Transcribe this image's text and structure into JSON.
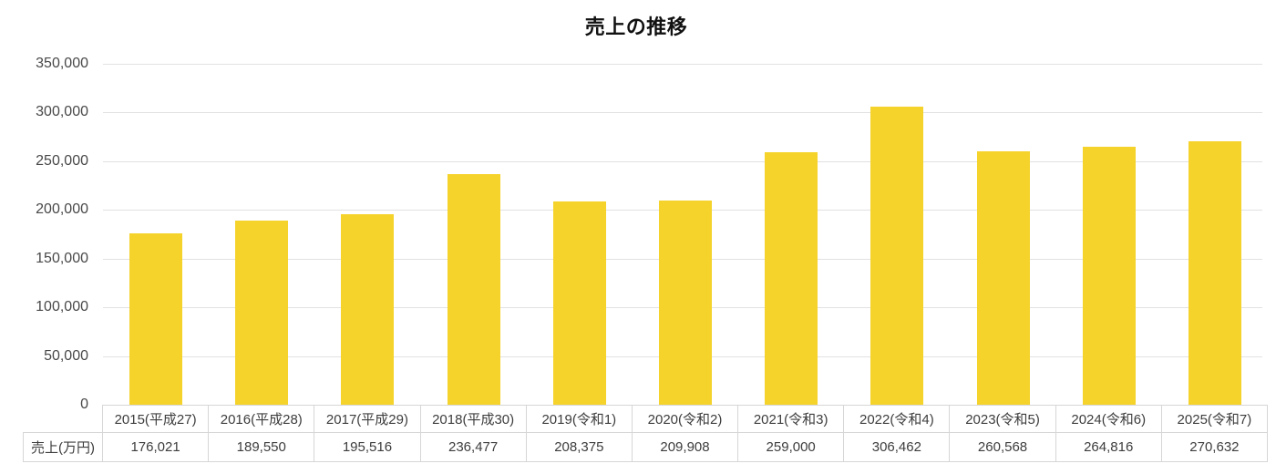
{
  "chart": {
    "title": "売上の推移"
  },
  "chart_data": {
    "type": "bar",
    "title": "売上の推移",
    "categories": [
      "2015(平成27)",
      "2016(平成28)",
      "2017(平成29)",
      "2018(平成30)",
      "2019(令和1)",
      "2020(令和2)",
      "2021(令和3)",
      "2022(令和4)",
      "2023(令和5)",
      "2024(令和6)",
      "2025(令和7)"
    ],
    "series": [
      {
        "name": "売上(万円)",
        "values": [
          176021,
          189550,
          195516,
          236477,
          208375,
          209908,
          259000,
          306462,
          260568,
          264816,
          270632
        ]
      }
    ],
    "value_labels": [
      "176,021",
      "189,550",
      "195,516",
      "236,477",
      "208,375",
      "209,908",
      "259,000",
      "306,462",
      "260,568",
      "264,816",
      "270,632"
    ],
    "xlabel": "",
    "ylabel": "",
    "ylim": [
      0,
      350000
    ],
    "y_tick_step": 50000,
    "y_tick_labels": [
      "350,000",
      "300,000",
      "250,000",
      "200,000",
      "150,000",
      "100,000",
      "50,000",
      "0"
    ],
    "grid": true,
    "legend_position": "none",
    "data_table_shown": true,
    "bar_color": "#F5D32B",
    "gridline_color": "#E2E2E2",
    "table_border_color": "#D6D6D6",
    "title_color": "#111111",
    "tick_label_color": "#484848"
  }
}
